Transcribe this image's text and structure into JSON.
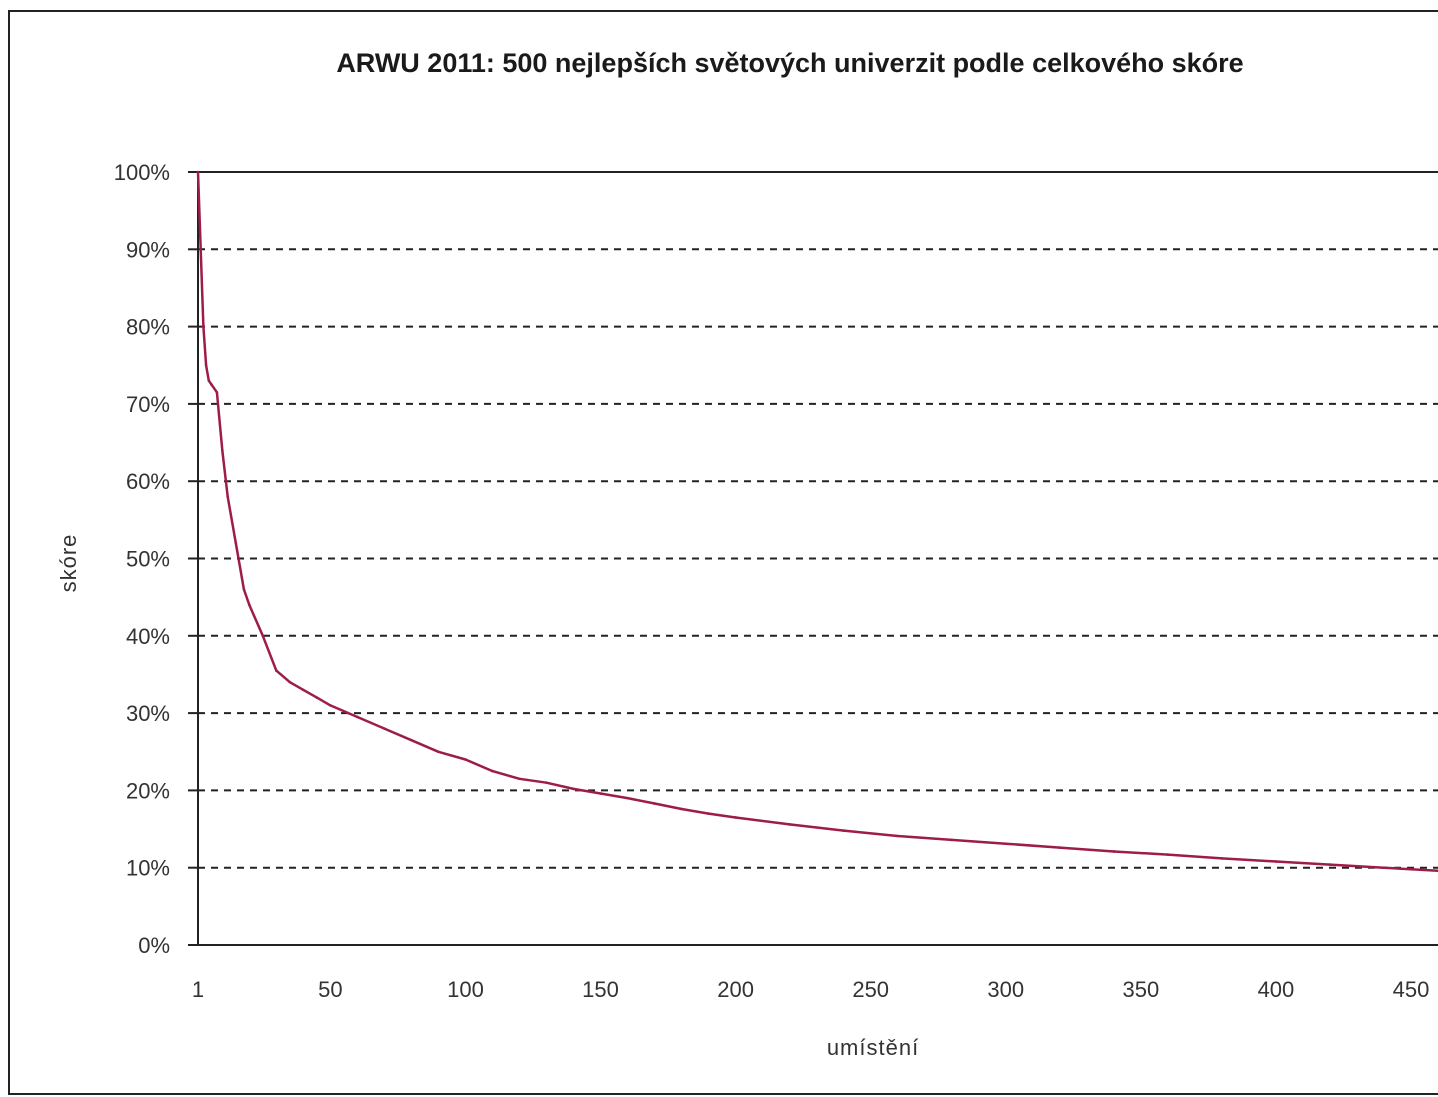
{
  "chart_data": {
    "type": "line",
    "title": "ARWU 2011: 500 nejlepších světových univerzit podle celkového skóre",
    "xlabel": "umístění",
    "ylabel": "skóre",
    "xlim": [
      1,
      460
    ],
    "ylim": [
      0,
      100
    ],
    "x_ticks": [
      {
        "value": 1,
        "label": "1"
      },
      {
        "value": 50,
        "label": "50"
      },
      {
        "value": 100,
        "label": "100"
      },
      {
        "value": 150,
        "label": "150"
      },
      {
        "value": 200,
        "label": "200"
      },
      {
        "value": 250,
        "label": "250"
      },
      {
        "value": 300,
        "label": "300"
      },
      {
        "value": 350,
        "label": "350"
      },
      {
        "value": 400,
        "label": "400"
      },
      {
        "value": 450,
        "label": "450"
      }
    ],
    "y_ticks": [
      {
        "value": 0,
        "label": "0%"
      },
      {
        "value": 10,
        "label": "10%"
      },
      {
        "value": 20,
        "label": "20%"
      },
      {
        "value": 30,
        "label": "30%"
      },
      {
        "value": 40,
        "label": "40%"
      },
      {
        "value": 50,
        "label": "50%"
      },
      {
        "value": 60,
        "label": "60%"
      },
      {
        "value": 70,
        "label": "70%"
      },
      {
        "value": 80,
        "label": "80%"
      },
      {
        "value": 90,
        "label": "90%"
      },
      {
        "value": 100,
        "label": "100%"
      }
    ],
    "grid": "horizontal dashed",
    "series_color": "#9e1c4a",
    "series": [
      {
        "x": [
          1,
          2,
          3,
          4,
          5,
          6,
          8,
          10,
          12,
          15,
          18,
          20,
          25,
          30,
          35,
          40,
          45,
          50,
          60,
          70,
          80,
          90,
          100,
          110,
          120,
          130,
          140,
          150,
          160,
          170,
          180,
          190,
          200,
          220,
          240,
          260,
          280,
          300,
          320,
          340,
          360,
          380,
          400,
          420,
          440,
          460
        ],
        "values": [
          100,
          90,
          80,
          75,
          73,
          72.5,
          71.5,
          64,
          58,
          52,
          46,
          44,
          40,
          35.5,
          34,
          33,
          32,
          31,
          29.5,
          28,
          26.5,
          25,
          24,
          22.5,
          21.5,
          21,
          20.2,
          19.6,
          19,
          18.3,
          17.6,
          17,
          16.5,
          15.6,
          14.8,
          14.1,
          13.6,
          13.1,
          12.6,
          12.1,
          11.7,
          11.2,
          10.8,
          10.4,
          10.0,
          9.6
        ]
      }
    ]
  }
}
